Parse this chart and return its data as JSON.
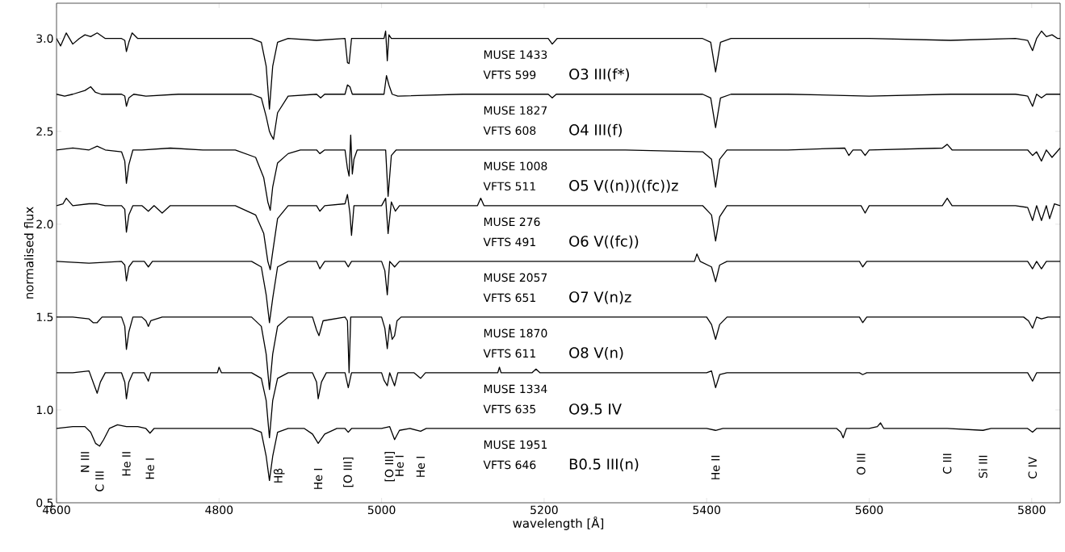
{
  "chart_data": {
    "type": "line",
    "xlabel": "wavelength [Å]",
    "ylabel": "normalised flux",
    "xlim": [
      4600,
      5835
    ],
    "ylim": [
      0.5,
      3.19
    ],
    "xticks": [
      4600,
      4800,
      5000,
      5200,
      5400,
      5600,
      5800
    ],
    "yticks": [
      0.5,
      {
        "value": 1,
        "label": "1.0"
      },
      1.5,
      {
        "value": 2,
        "label": "2.0"
      },
      2.5,
      {
        "value": 3,
        "label": "3.0"
      }
    ],
    "grid": false,
    "line_style": "solid",
    "marker": "none",
    "series": [
      {
        "color": "#000000",
        "x": [
          4600,
          4605,
          4612,
          4620,
          4628,
          4635,
          4642,
          4650,
          4660,
          4670,
          4680,
          4684,
          4686,
          4689,
          4693,
          4700,
          4720,
          4760,
          4800,
          4840,
          4852,
          4858,
          4862,
          4866,
          4872,
          4885,
          4920,
          4955,
          4958,
          4960,
          4963,
          4990,
          5003,
          5005,
          5007,
          5009,
          5012,
          5050,
          5150,
          5205,
          5210,
          5216,
          5300,
          5395,
          5405,
          5411,
          5417,
          5430,
          5500,
          5600,
          5700,
          5780,
          5795,
          5801,
          5806,
          5812,
          5818,
          5825,
          5832,
          5835
        ],
        "values": [
          3.0,
          2.96,
          3.03,
          2.97,
          3.0,
          3.02,
          3.01,
          3.03,
          3.0,
          3.0,
          3.0,
          2.99,
          2.93,
          2.98,
          3.03,
          3.0,
          3.0,
          3.0,
          3.0,
          3.0,
          2.98,
          2.85,
          2.62,
          2.85,
          2.98,
          3.0,
          2.99,
          3.0,
          2.87,
          2.865,
          3.0,
          3.0,
          3.0,
          3.04,
          2.88,
          3.02,
          3.0,
          3.0,
          3.0,
          3.0,
          2.97,
          3.0,
          3.0,
          3.0,
          2.98,
          2.82,
          2.98,
          3.0,
          3.0,
          3.0,
          2.99,
          3.0,
          2.99,
          2.935,
          3.0,
          3.04,
          3.01,
          3.02,
          3.0,
          3.0
        ]
      },
      {
        "color": "#000000",
        "x": [
          4600,
          4610,
          4620,
          4635,
          4642,
          4648,
          4655,
          4670,
          4680,
          4684,
          4686,
          4689,
          4695,
          4710,
          4750,
          4800,
          4840,
          4852,
          4858,
          4862,
          4864,
          4867,
          4872,
          4885,
          4920,
          4925,
          4930,
          4955,
          4958,
          4961,
          4964,
          4990,
          5003,
          5006,
          5009,
          5013,
          5020,
          5100,
          5205,
          5210,
          5215,
          5300,
          5395,
          5405,
          5411,
          5417,
          5430,
          5500,
          5600,
          5700,
          5780,
          5795,
          5801,
          5806,
          5812,
          5818,
          5825,
          5835
        ],
        "values": [
          2.7,
          2.69,
          2.7,
          2.72,
          2.74,
          2.71,
          2.7,
          2.7,
          2.7,
          2.69,
          2.635,
          2.68,
          2.7,
          2.69,
          2.7,
          2.7,
          2.7,
          2.68,
          2.58,
          2.5,
          2.48,
          2.457,
          2.6,
          2.69,
          2.7,
          2.68,
          2.7,
          2.7,
          2.75,
          2.74,
          2.7,
          2.7,
          2.7,
          2.8,
          2.75,
          2.7,
          2.69,
          2.7,
          2.7,
          2.68,
          2.7,
          2.7,
          2.7,
          2.68,
          2.52,
          2.68,
          2.7,
          2.7,
          2.69,
          2.7,
          2.7,
          2.69,
          2.635,
          2.7,
          2.68,
          2.7,
          2.7,
          2.7
        ]
      },
      {
        "color": "#000000",
        "x": [
          4600,
          4620,
          4640,
          4650,
          4660,
          4680,
          4684,
          4686,
          4689,
          4694,
          4705,
          4740,
          4780,
          4820,
          4845,
          4855,
          4860,
          4863,
          4866,
          4872,
          4885,
          4900,
          4920,
          4924,
          4930,
          4955,
          4958,
          4960,
          4962,
          4964,
          4966,
          4970,
          4990,
          5005,
          5008,
          5012,
          5018,
          5050,
          5100,
          5200,
          5300,
          5395,
          5406,
          5411,
          5416,
          5425,
          5500,
          5570,
          5575,
          5580,
          5590,
          5595,
          5600,
          5690,
          5696,
          5702,
          5780,
          5795,
          5801,
          5806,
          5812,
          5818,
          5825,
          5835
        ],
        "values": [
          2.4,
          2.41,
          2.4,
          2.42,
          2.4,
          2.39,
          2.34,
          2.22,
          2.32,
          2.4,
          2.4,
          2.41,
          2.4,
          2.4,
          2.36,
          2.25,
          2.12,
          2.075,
          2.2,
          2.33,
          2.38,
          2.4,
          2.4,
          2.38,
          2.4,
          2.4,
          2.3,
          2.26,
          2.48,
          2.27,
          2.35,
          2.4,
          2.4,
          2.4,
          2.15,
          2.37,
          2.4,
          2.4,
          2.4,
          2.4,
          2.4,
          2.39,
          2.35,
          2.2,
          2.35,
          2.4,
          2.4,
          2.41,
          2.37,
          2.4,
          2.4,
          2.37,
          2.4,
          2.41,
          2.43,
          2.4,
          2.4,
          2.4,
          2.37,
          2.39,
          2.34,
          2.4,
          2.36,
          2.41
        ]
      },
      {
        "color": "#000000",
        "x": [
          4600,
          4608,
          4612,
          4620,
          4640,
          4650,
          4660,
          4680,
          4684,
          4686,
          4689,
          4694,
          4705,
          4713,
          4720,
          4730,
          4740,
          4780,
          4820,
          4845,
          4855,
          4860,
          4863,
          4866,
          4872,
          4885,
          4920,
          4924,
          4930,
          4955,
          4958,
          4961,
          4963,
          4966,
          4975,
          5000,
          5005,
          5008,
          5012,
          5017,
          5022,
          5040,
          5100,
          5118,
          5122,
          5126,
          5200,
          5300,
          5395,
          5406,
          5411,
          5416,
          5425,
          5500,
          5590,
          5595,
          5600,
          5690,
          5696,
          5702,
          5780,
          5795,
          5801,
          5806,
          5812,
          5818,
          5822,
          5828,
          5835
        ],
        "values": [
          2.1,
          2.11,
          2.14,
          2.1,
          2.11,
          2.11,
          2.1,
          2.1,
          2.08,
          1.957,
          2.05,
          2.1,
          2.1,
          2.07,
          2.1,
          2.06,
          2.1,
          2.1,
          2.1,
          2.05,
          1.95,
          1.8,
          1.755,
          1.85,
          2.03,
          2.1,
          2.1,
          2.07,
          2.1,
          2.11,
          2.16,
          2.06,
          1.94,
          2.1,
          2.1,
          2.1,
          2.14,
          1.95,
          2.12,
          2.07,
          2.1,
          2.1,
          2.1,
          2.1,
          2.14,
          2.1,
          2.1,
          2.1,
          2.1,
          2.05,
          1.91,
          2.04,
          2.1,
          2.1,
          2.1,
          2.06,
          2.1,
          2.1,
          2.14,
          2.1,
          2.1,
          2.09,
          2.02,
          2.1,
          2.02,
          2.1,
          2.03,
          2.11,
          2.1
        ]
      },
      {
        "color": "#000000",
        "x": [
          4600,
          4640,
          4680,
          4684,
          4686,
          4689,
          4694,
          4708,
          4713,
          4718,
          4780,
          4840,
          4852,
          4858,
          4862,
          4866,
          4872,
          4885,
          4920,
          4924,
          4930,
          4955,
          4959,
          4963,
          5000,
          5004,
          5007,
          5010,
          5016,
          5022,
          5100,
          5300,
          5385,
          5388,
          5392,
          5406,
          5411,
          5416,
          5425,
          5500,
          5588,
          5592,
          5597,
          5700,
          5795,
          5801,
          5806,
          5812,
          5818,
          5835
        ],
        "values": [
          1.8,
          1.79,
          1.8,
          1.78,
          1.695,
          1.77,
          1.8,
          1.8,
          1.77,
          1.8,
          1.8,
          1.8,
          1.77,
          1.62,
          1.47,
          1.6,
          1.77,
          1.8,
          1.8,
          1.76,
          1.8,
          1.8,
          1.77,
          1.8,
          1.8,
          1.75,
          1.62,
          1.8,
          1.77,
          1.8,
          1.8,
          1.8,
          1.8,
          1.84,
          1.8,
          1.77,
          1.69,
          1.78,
          1.8,
          1.8,
          1.8,
          1.77,
          1.8,
          1.8,
          1.8,
          1.76,
          1.8,
          1.76,
          1.8,
          1.8
        ]
      },
      {
        "color": "#000000",
        "x": [
          4600,
          4620,
          4640,
          4645,
          4650,
          4656,
          4670,
          4680,
          4684,
          4686,
          4689,
          4694,
          4705,
          4710,
          4713,
          4716,
          4730,
          4780,
          4840,
          4852,
          4858,
          4862,
          4866,
          4872,
          4885,
          4915,
          4920,
          4923,
          4928,
          4955,
          4958,
          4960,
          4962,
          4966,
          5000,
          5004,
          5007,
          5010,
          5013,
          5016,
          5019,
          5024,
          5100,
          5200,
          5300,
          5400,
          5406,
          5411,
          5416,
          5425,
          5500,
          5588,
          5592,
          5597,
          5700,
          5790,
          5796,
          5801,
          5806,
          5812,
          5820,
          5835
        ],
        "values": [
          1.5,
          1.5,
          1.49,
          1.47,
          1.47,
          1.5,
          1.5,
          1.5,
          1.45,
          1.326,
          1.42,
          1.5,
          1.5,
          1.48,
          1.45,
          1.48,
          1.5,
          1.5,
          1.5,
          1.45,
          1.3,
          1.11,
          1.3,
          1.45,
          1.5,
          1.5,
          1.43,
          1.4,
          1.48,
          1.5,
          1.48,
          1.2,
          1.5,
          1.5,
          1.5,
          1.44,
          1.33,
          1.46,
          1.38,
          1.4,
          1.48,
          1.5,
          1.5,
          1.5,
          1.5,
          1.5,
          1.46,
          1.38,
          1.46,
          1.5,
          1.5,
          1.5,
          1.47,
          1.5,
          1.5,
          1.5,
          1.48,
          1.44,
          1.5,
          1.49,
          1.5,
          1.5
        ]
      },
      {
        "color": "#000000",
        "x": [
          4600,
          4620,
          4640,
          4645,
          4650,
          4654,
          4660,
          4680,
          4684,
          4686,
          4689,
          4694,
          4708,
          4713,
          4716,
          4720,
          4798,
          4800,
          4803,
          4840,
          4852,
          4858,
          4862,
          4866,
          4872,
          4885,
          4915,
          4920,
          4922,
          4926,
          4932,
          4955,
          4959,
          4963,
          5000,
          5003,
          5007,
          5010,
          5016,
          5020,
          5040,
          5048,
          5054,
          5143,
          5145,
          5147,
          5185,
          5190,
          5195,
          5300,
          5400,
          5406,
          5411,
          5416,
          5425,
          5500,
          5588,
          5592,
          5597,
          5700,
          5795,
          5801,
          5806,
          5835
        ],
        "values": [
          1.2,
          1.2,
          1.21,
          1.15,
          1.09,
          1.15,
          1.2,
          1.2,
          1.15,
          1.06,
          1.15,
          1.2,
          1.2,
          1.155,
          1.2,
          1.2,
          1.2,
          1.23,
          1.2,
          1.2,
          1.17,
          1.05,
          0.85,
          1.05,
          1.17,
          1.2,
          1.2,
          1.15,
          1.06,
          1.15,
          1.2,
          1.2,
          1.12,
          1.2,
          1.2,
          1.16,
          1.13,
          1.2,
          1.13,
          1.2,
          1.2,
          1.17,
          1.2,
          1.2,
          1.23,
          1.2,
          1.2,
          1.22,
          1.2,
          1.2,
          1.2,
          1.21,
          1.12,
          1.19,
          1.2,
          1.2,
          1.2,
          1.19,
          1.2,
          1.2,
          1.2,
          1.155,
          1.2,
          1.2
        ]
      },
      {
        "color": "#000000",
        "x": [
          4600,
          4620,
          4635,
          4642,
          4648,
          4653,
          4658,
          4665,
          4675,
          4686,
          4700,
          4710,
          4715,
          4720,
          4780,
          4840,
          4852,
          4858,
          4862,
          4866,
          4872,
          4885,
          4905,
          4915,
          4922,
          4930,
          4945,
          4955,
          4959,
          4963,
          5000,
          5010,
          5016,
          5022,
          5035,
          5048,
          5055,
          5100,
          5300,
          5400,
          5411,
          5420,
          5500,
          5560,
          5565,
          5568,
          5572,
          5590,
          5600,
          5610,
          5614,
          5618,
          5640,
          5696,
          5740,
          5750,
          5760,
          5795,
          5801,
          5806,
          5835
        ],
        "values": [
          0.9,
          0.91,
          0.91,
          0.88,
          0.82,
          0.805,
          0.84,
          0.9,
          0.92,
          0.91,
          0.91,
          0.9,
          0.875,
          0.9,
          0.9,
          0.9,
          0.88,
          0.75,
          0.62,
          0.75,
          0.88,
          0.9,
          0.9,
          0.87,
          0.82,
          0.87,
          0.9,
          0.9,
          0.88,
          0.9,
          0.9,
          0.91,
          0.84,
          0.89,
          0.9,
          0.885,
          0.9,
          0.9,
          0.9,
          0.9,
          0.89,
          0.9,
          0.9,
          0.9,
          0.88,
          0.85,
          0.9,
          0.9,
          0.9,
          0.91,
          0.93,
          0.9,
          0.9,
          0.9,
          0.89,
          0.9,
          0.9,
          0.9,
          0.88,
          0.9,
          0.9
        ]
      }
    ],
    "annotations": [
      {
        "text": "N III",
        "x": 4635,
        "y": 0.91
      },
      {
        "text": "C III",
        "x": 4653,
        "y": 0.805
      },
      {
        "text": "He II",
        "x": 4686,
        "y": 0.91
      },
      {
        "text": "He I",
        "x": 4715,
        "y": 0.875
      },
      {
        "text": "Hβ",
        "x": 4862,
        "y": 0.62
      },
      {
        "text": "He I",
        "x": 4922,
        "y": 0.82
      },
      {
        "text": "[O III]",
        "x": 4959,
        "y": 0.88
      },
      {
        "text": "[O III]",
        "x": 5010,
        "y": 0.91
      },
      {
        "text": "He I",
        "x": 5022,
        "y": 0.89
      },
      {
        "text": "He I",
        "x": 5048,
        "y": 0.885
      },
      {
        "text": "He II",
        "x": 5411,
        "y": 0.89
      },
      {
        "text": "O III",
        "x": 5590,
        "y": 0.9
      },
      {
        "text": "C III",
        "x": 5696,
        "y": 0.9
      },
      {
        "text": "Si III",
        "x": 5740,
        "y": 0.89
      },
      {
        "text": "C IV",
        "x": 5801,
        "y": 0.88
      },
      "MUSE 1433",
      "VFTS 599",
      "O3 III(f*)",
      "MUSE 1827",
      "VFTS 608",
      "O4 III(f)",
      "MUSE 1008",
      "VFTS 511",
      "O5 V((n))((fc))z",
      "MUSE 276",
      "VFTS 491",
      "O6 V((fc))",
      "MUSE 2057",
      "VFTS 651",
      "O7 V(n)z",
      "MUSE 1870",
      "VFTS 611",
      "O8 V(n)",
      "MUSE 1334",
      "VFTS 635",
      "O9.5 IV",
      "MUSE 1951",
      "VFTS 646",
      "B0.5 III(n)"
    ]
  }
}
